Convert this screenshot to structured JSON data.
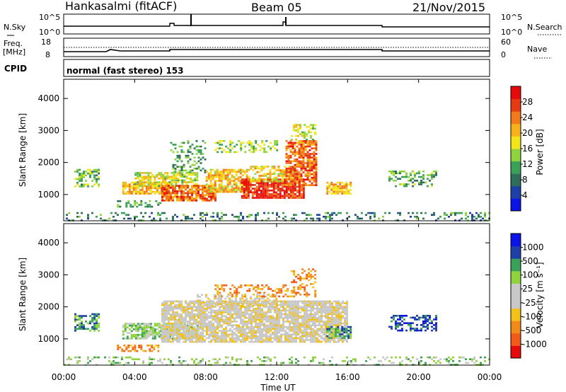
{
  "header": {
    "station": "Hankasalmi (fitACF)",
    "beam": "Beam 05",
    "date": "21/Nov/2015"
  },
  "noise_panel": {
    "left_label": "N.Sky",
    "left_ticks": [
      "10^5",
      "10^0"
    ],
    "right_label": "N.Search",
    "right_ticks": [
      "10^5",
      "10^0"
    ]
  },
  "freq_panel": {
    "left_label_1": "Freq.",
    "left_label_2": "[MHz]",
    "left_ticks": [
      "18",
      "8"
    ],
    "right_label": "Nave",
    "right_ticks": [
      "60",
      "0"
    ]
  },
  "cpid": {
    "label": "CPID",
    "mode": "normal (fast stereo) 153"
  },
  "x_axis": {
    "label": "Time UT",
    "ticks": [
      "00:00",
      "04:00",
      "08:00",
      "12:00",
      "16:00",
      "20:00",
      "00:00"
    ]
  },
  "colors": {
    "power": [
      "#0a14e6",
      "#1f3fa8",
      "#2f6e5a",
      "#3aa05a",
      "#8fd43c",
      "#f2e61a",
      "#f7b21a",
      "#f27a1a",
      "#e63a14",
      "#e60a0a"
    ],
    "velocity": [
      "#e60a0a",
      "#f25a1a",
      "#f28a1a",
      "#f2c21a",
      "#c8c8c8",
      "#c8c8c8",
      "#8fd43c",
      "#3aa05a",
      "#1f3fa8",
      "#0a14e6"
    ]
  },
  "chart_data": [
    {
      "type": "heatmap",
      "panel": "power",
      "ylabel": "Slant Range [km]",
      "xlabel": "Time UT",
      "x_range_hours": [
        0,
        24
      ],
      "ylim": [
        180,
        4600
      ],
      "yticks": [
        1000,
        2000,
        3000,
        4000
      ],
      "colorbar": {
        "label": "Power [dB]",
        "ticks": [
          "4",
          "8",
          "12",
          "16",
          "20",
          "24",
          "28"
        ],
        "range": [
          0,
          30
        ]
      },
      "regions": [
        {
          "t0": 0.6,
          "t1": 2.0,
          "r0": 1250,
          "r1": 1800,
          "level": 11,
          "density": 0.55
        },
        {
          "t0": 3.3,
          "t1": 6.0,
          "r0": 1000,
          "r1": 1400,
          "level": 18,
          "density": 0.8
        },
        {
          "t0": 4.0,
          "t1": 7.5,
          "r0": 1250,
          "r1": 1700,
          "level": 14,
          "density": 0.7
        },
        {
          "t0": 3.0,
          "t1": 5.5,
          "r0": 620,
          "r1": 820,
          "level": 9,
          "density": 0.45
        },
        {
          "t0": 5.5,
          "t1": 8.5,
          "r0": 800,
          "r1": 1300,
          "level": 22,
          "density": 0.85
        },
        {
          "t0": 6.0,
          "t1": 8.0,
          "r0": 1700,
          "r1": 2700,
          "level": 9,
          "density": 0.3
        },
        {
          "t0": 8.0,
          "t1": 10.5,
          "r0": 1100,
          "r1": 1800,
          "level": 17,
          "density": 0.75
        },
        {
          "t0": 8.5,
          "t1": 12.0,
          "r0": 2300,
          "r1": 2700,
          "level": 12,
          "density": 0.4
        },
        {
          "t0": 10.0,
          "t1": 13.5,
          "r0": 900,
          "r1": 1500,
          "level": 25,
          "density": 0.85
        },
        {
          "t0": 10.5,
          "t1": 13.0,
          "r0": 1400,
          "r1": 1900,
          "level": 16,
          "density": 0.6
        },
        {
          "t0": 12.5,
          "t1": 14.2,
          "r0": 1300,
          "r1": 2700,
          "level": 22,
          "density": 0.75
        },
        {
          "t0": 12.8,
          "t1": 14.2,
          "r0": 2700,
          "r1": 3200,
          "level": 14,
          "density": 0.4
        },
        {
          "t0": 14.8,
          "t1": 16.2,
          "r0": 1000,
          "r1": 1400,
          "level": 18,
          "density": 0.75
        },
        {
          "t0": 18.3,
          "t1": 21.0,
          "r0": 1250,
          "r1": 1750,
          "level": 10,
          "density": 0.45
        },
        {
          "t0": 0.0,
          "t1": 24.0,
          "r0": 180,
          "r1": 450,
          "level": 7,
          "density": 0.25
        }
      ]
    },
    {
      "type": "heatmap",
      "panel": "velocity",
      "ylabel": "Slant Range [km]",
      "xlabel": "Time UT",
      "x_range_hours": [
        0,
        24
      ],
      "ylim": [
        180,
        4600
      ],
      "yticks": [
        1000,
        2000,
        3000,
        4000
      ],
      "colorbar": {
        "label": "Velocity [m s⁻¹]",
        "ticks": [
          "1000",
          "500",
          "100",
          "25",
          "-25",
          "-100",
          "-500",
          "-1000"
        ],
        "range": [
          -1000,
          1000
        ]
      },
      "regions": [
        {
          "t0": 0.6,
          "t1": 2.0,
          "r0": 1250,
          "r1": 1800,
          "level": 7,
          "density": 0.55
        },
        {
          "t0": 3.3,
          "t1": 7.5,
          "r0": 1000,
          "r1": 1500,
          "level": 6,
          "density": 0.75
        },
        {
          "t0": 3.0,
          "t1": 5.5,
          "r0": 620,
          "r1": 820,
          "level": 2,
          "density": 0.5
        },
        {
          "t0": 5.5,
          "t1": 16.0,
          "r0": 900,
          "r1": 2200,
          "level": 4,
          "density": 0.85
        },
        {
          "t0": 7.5,
          "t1": 12.0,
          "r0": 2000,
          "r1": 2400,
          "level": 4,
          "density": 0.5
        },
        {
          "t0": 8.5,
          "t1": 14.2,
          "r0": 2300,
          "r1": 2700,
          "level": 2,
          "density": 0.35
        },
        {
          "t0": 12.8,
          "t1": 14.2,
          "r0": 2700,
          "r1": 3200,
          "level": 2,
          "density": 0.35
        },
        {
          "t0": 14.8,
          "t1": 16.2,
          "r0": 1000,
          "r1": 1400,
          "level": 7,
          "density": 0.6
        },
        {
          "t0": 18.3,
          "t1": 21.0,
          "r0": 1250,
          "r1": 1750,
          "level": 8,
          "density": 0.45
        },
        {
          "t0": 0.0,
          "t1": 24.0,
          "r0": 180,
          "r1": 450,
          "level": 6,
          "density": 0.25
        }
      ]
    }
  ]
}
